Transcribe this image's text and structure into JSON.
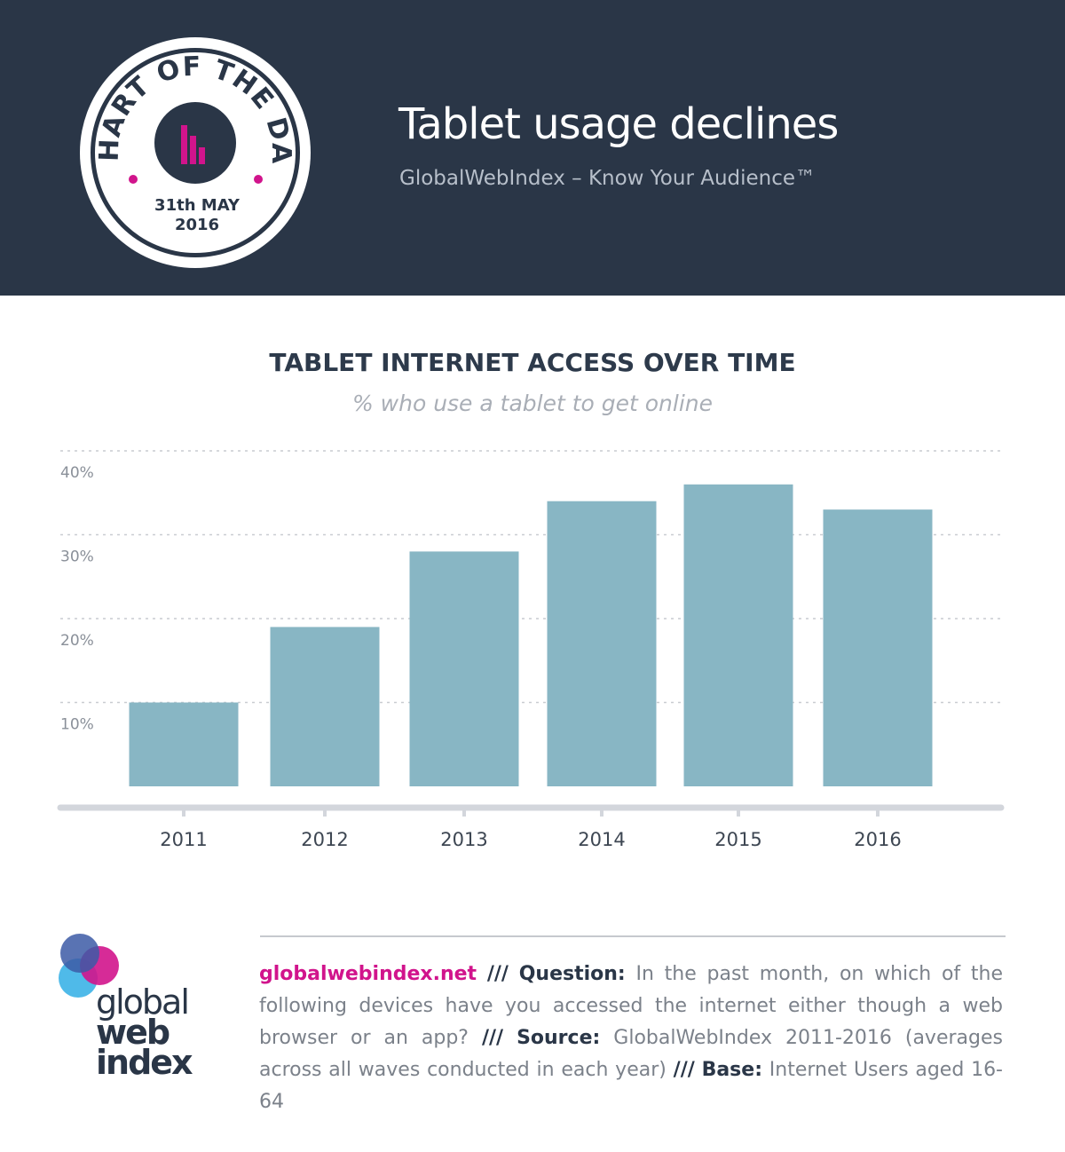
{
  "header": {
    "badge": {
      "arc_text": "CHART OF THE DAY",
      "date_line1": "31th MAY",
      "date_line2": "2016"
    },
    "title": "Tablet usage declines",
    "tagline": "GlobalWebIndex – Know Your Audience™"
  },
  "colors": {
    "header_bg": "#2a3647",
    "bar": "#88b6c4",
    "accent": "#d1148c",
    "grid": "#c9ccd1",
    "axis": "#d3d6dc"
  },
  "chart_data": {
    "type": "bar",
    "title": "TABLET INTERNET ACCESS OVER TIME",
    "subtitle": "% who use a tablet to get online",
    "categories": [
      "2011",
      "2012",
      "2013",
      "2014",
      "2015",
      "2016"
    ],
    "values": [
      10,
      19,
      28,
      34,
      36,
      33
    ],
    "yticks": [
      "10%",
      "20%",
      "30%",
      "40%"
    ],
    "ytick_values": [
      10,
      20,
      30,
      40
    ],
    "ylim": [
      0,
      43
    ],
    "grid": true,
    "xlabel": "",
    "ylabel": ""
  },
  "footer": {
    "logo": {
      "line1": "global",
      "line2": "web",
      "line3": "index"
    },
    "site": "globalwebindex.net",
    "sep": "///",
    "question_label": "Question:",
    "question_text": "In the past month, on which of the following devices have you accessed the internet either though a web browser or an app?",
    "source_label": "Source:",
    "source_text": "GlobalWebIndex 2011-2016 (averages across all waves conducted in each year)",
    "base_label": "Base:",
    "base_text": "Internet Users aged 16-64"
  }
}
